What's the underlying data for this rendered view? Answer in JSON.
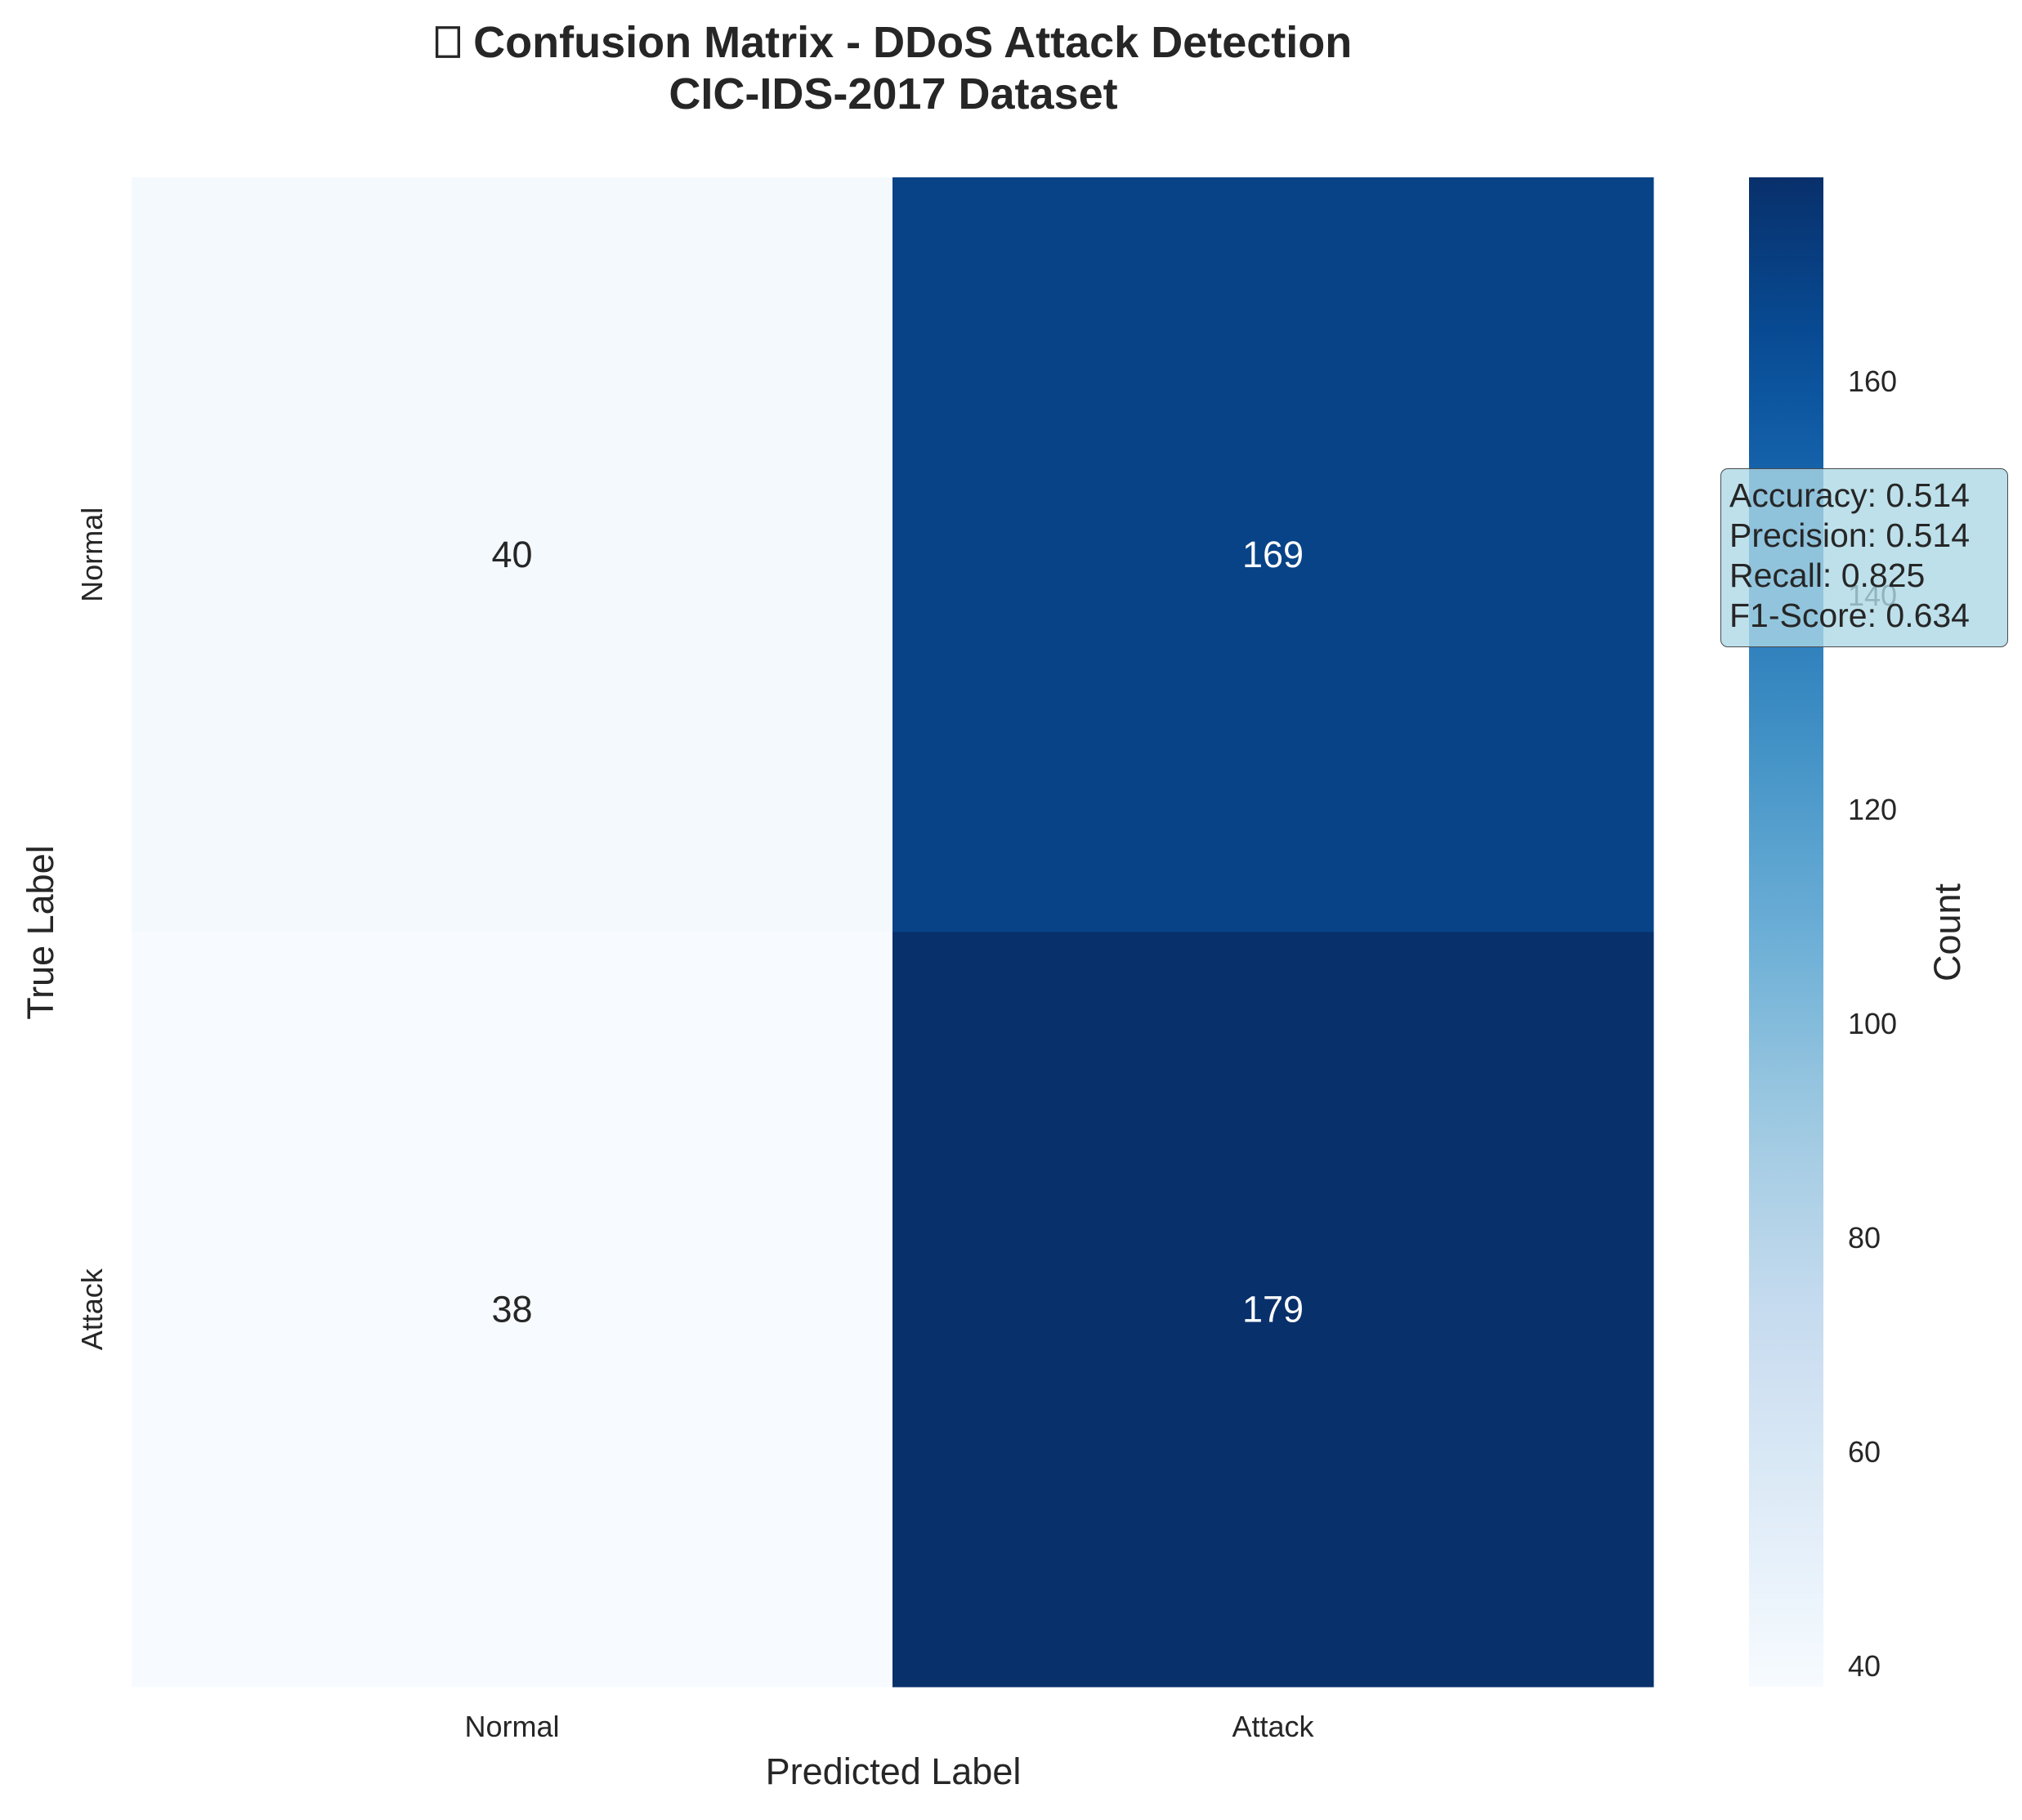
{
  "chart_data": {
    "type": "heatmap",
    "title": "⎕ Confusion Matrix - DDoS Attack Detection",
    "subtitle": "CIC-IDS-2017 Dataset",
    "xlabel": "Predicted Label",
    "ylabel": "True Label",
    "x_categories": [
      "Normal",
      "Attack"
    ],
    "y_categories": [
      "Normal",
      "Attack"
    ],
    "matrix": [
      [
        40,
        169
      ],
      [
        38,
        179
      ]
    ],
    "colormap": "Blues",
    "colorbar": {
      "label": "Count",
      "range": [
        38,
        179
      ],
      "ticks": [
        40,
        60,
        80,
        100,
        120,
        140,
        160
      ]
    },
    "grid": false
  },
  "metrics": {
    "accuracy": "Accuracy: 0.514",
    "precision": "Precision: 0.514",
    "recall": "Recall: 0.825",
    "f1": "F1-Score: 0.634"
  }
}
